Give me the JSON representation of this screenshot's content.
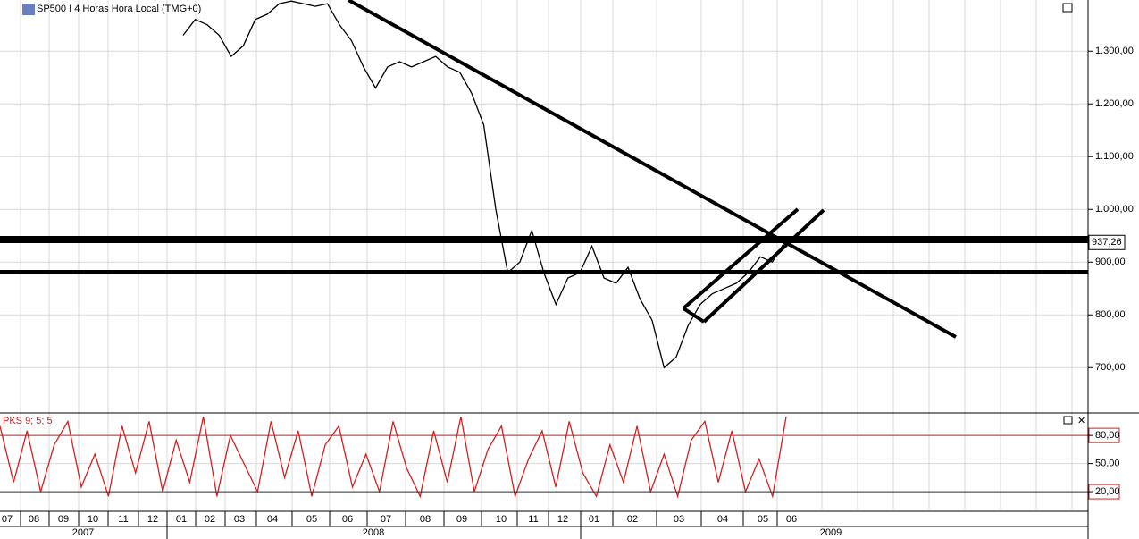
{
  "chart_data": [
    {
      "type": "line",
      "title": "SP500 I 4 Horas Hora Local (TMG+0)",
      "color": "#000000",
      "values": [
        1330,
        1360,
        1350,
        1330,
        1290,
        1310,
        1360,
        1370,
        1390,
        1395,
        1390,
        1385,
        1390,
        1350,
        1320,
        1270,
        1230,
        1270,
        1280,
        1270,
        1280,
        1290,
        1270,
        1260,
        1220,
        1160,
        1000,
        880,
        900,
        960,
        880,
        820,
        870,
        880,
        930,
        870,
        860,
        890,
        830,
        790,
        700,
        720,
        780,
        820,
        840,
        850,
        860,
        880,
        910,
        900,
        937.26
      ],
      "last_price": {
        "value": 937.26,
        "label": "937,26"
      },
      "ylim": [
        614,
        1397
      ],
      "yticks": [
        {
          "value": 700,
          "label": "700,00"
        },
        {
          "value": 800,
          "label": "800,00"
        },
        {
          "value": 900,
          "label": "900,00"
        },
        {
          "value": 1000,
          "label": "1.000,00"
        },
        {
          "value": 1100,
          "label": "1.100,00"
        },
        {
          "value": 1200,
          "label": "1.200,00"
        },
        {
          "value": 1300,
          "label": "1.300,00"
        }
      ],
      "grid": true
    },
    {
      "type": "line",
      "title": "PKS 9; 5; 5",
      "color": "#cc2222",
      "values": [
        90,
        30,
        85,
        20,
        70,
        95,
        25,
        60,
        15,
        90,
        40,
        95,
        20,
        75,
        30,
        100,
        15,
        80,
        50,
        20,
        95,
        35,
        85,
        15,
        70,
        90,
        25,
        60,
        20,
        95,
        45,
        15,
        85,
        30,
        100,
        20,
        65,
        90,
        15,
        55,
        85,
        25,
        95,
        40,
        15,
        70,
        30,
        90,
        20,
        60,
        15,
        75,
        95,
        30,
        85,
        20,
        55,
        15,
        100
      ],
      "ylim": [
        1,
        103
      ],
      "yticks": [
        {
          "value": 20,
          "label": "20,00"
        },
        {
          "value": 50,
          "label": "50,00"
        },
        {
          "value": 80,
          "label": "80,00"
        }
      ],
      "grid": true
    }
  ],
  "x_axis": {
    "months": [
      "07",
      "08",
      "09",
      "10",
      "11",
      "12",
      "01",
      "02",
      "03",
      "04",
      "05",
      "06",
      "07",
      "08",
      "09",
      "10",
      "11",
      "12",
      "01",
      "02",
      "03",
      "04",
      "05",
      "06"
    ],
    "years": [
      "2007",
      "2008",
      "2009"
    ]
  }
}
